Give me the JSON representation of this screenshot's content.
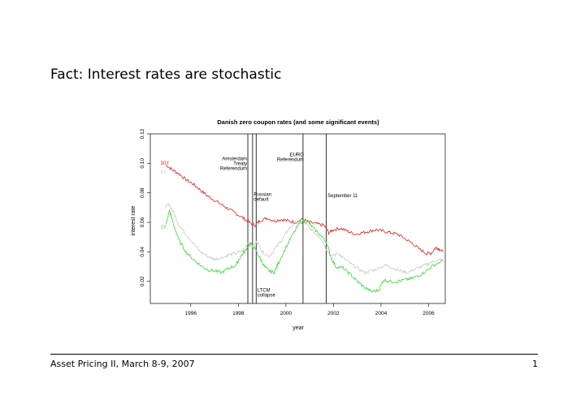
{
  "slide": {
    "title": "Fact: Interest rates are stochastic",
    "footer_left": "Asset Pricing II, March 8-9, 2007",
    "footer_right": "1"
  },
  "chart_data": {
    "type": "line",
    "title": "Danish zero coupon rates (and some significant events)",
    "xlabel": "year",
    "ylabel": "interest rate",
    "xlim": [
      1994.3,
      2006.7
    ],
    "ylim": [
      0.005,
      0.12
    ],
    "xticks": [
      1996,
      1998,
      2000,
      2002,
      2004,
      2006
    ],
    "yticks": [
      0.02,
      0.04,
      0.06,
      0.08,
      0.1,
      0.12
    ],
    "xtick_labels": [
      "1996",
      "1998",
      "2000",
      "2002",
      "2004",
      "2006"
    ],
    "ytick_labels": [
      "0.02",
      "0.04",
      "0.06",
      "0.08",
      "0.10",
      "0.12"
    ],
    "grid": false,
    "legend": "none",
    "series": [
      {
        "name": "30Y",
        "color": "#e0231d",
        "points": [
          [
            1994.95,
            0.099
          ],
          [
            1995.2,
            0.096
          ],
          [
            1995.5,
            0.093
          ],
          [
            1995.8,
            0.089
          ],
          [
            1996.1,
            0.086
          ],
          [
            1996.4,
            0.082
          ],
          [
            1996.7,
            0.078
          ],
          [
            1997.0,
            0.075
          ],
          [
            1997.3,
            0.072
          ],
          [
            1997.6,
            0.069
          ],
          [
            1997.9,
            0.066
          ],
          [
            1998.2,
            0.063
          ],
          [
            1998.45,
            0.06
          ],
          [
            1998.7,
            0.058
          ],
          [
            1998.9,
            0.061
          ],
          [
            1999.2,
            0.063
          ],
          [
            1999.5,
            0.061
          ],
          [
            1999.8,
            0.062
          ],
          [
            2000.1,
            0.061
          ],
          [
            2000.4,
            0.06
          ],
          [
            2000.7,
            0.062
          ],
          [
            2001.0,
            0.06
          ],
          [
            2001.3,
            0.059
          ],
          [
            2001.6,
            0.058
          ],
          [
            2001.8,
            0.053
          ],
          [
            2002.0,
            0.055
          ],
          [
            2002.3,
            0.056
          ],
          [
            2002.6,
            0.054
          ],
          [
            2002.9,
            0.052
          ],
          [
            2003.2,
            0.053
          ],
          [
            2003.5,
            0.054
          ],
          [
            2003.8,
            0.055
          ],
          [
            2004.1,
            0.054
          ],
          [
            2004.4,
            0.053
          ],
          [
            2004.7,
            0.052
          ],
          [
            2005.0,
            0.049
          ],
          [
            2005.3,
            0.046
          ],
          [
            2005.6,
            0.042
          ],
          [
            2005.9,
            0.039
          ],
          [
            2006.1,
            0.039
          ],
          [
            2006.3,
            0.043
          ],
          [
            2006.45,
            0.042
          ],
          [
            2006.6,
            0.04
          ]
        ]
      },
      {
        "name": "5Y",
        "color": "#c8c8c8",
        "points": [
          [
            1994.95,
            0.071
          ],
          [
            1995.1,
            0.072
          ],
          [
            1995.3,
            0.066
          ],
          [
            1995.5,
            0.058
          ],
          [
            1995.8,
            0.052
          ],
          [
            1996.1,
            0.046
          ],
          [
            1996.4,
            0.04
          ],
          [
            1996.7,
            0.037
          ],
          [
            1997.0,
            0.035
          ],
          [
            1997.3,
            0.036
          ],
          [
            1997.6,
            0.038
          ],
          [
            1997.9,
            0.039
          ],
          [
            1998.2,
            0.041
          ],
          [
            1998.4,
            0.046
          ],
          [
            1998.6,
            0.044
          ],
          [
            1998.8,
            0.047
          ],
          [
            1999.0,
            0.04
          ],
          [
            1999.3,
            0.037
          ],
          [
            1999.6,
            0.043
          ],
          [
            1999.9,
            0.05
          ],
          [
            2000.1,
            0.055
          ],
          [
            2000.4,
            0.06
          ],
          [
            2000.7,
            0.061
          ],
          [
            2000.9,
            0.058
          ],
          [
            2001.2,
            0.053
          ],
          [
            2001.5,
            0.049
          ],
          [
            2001.7,
            0.042
          ],
          [
            2001.9,
            0.037
          ],
          [
            2002.2,
            0.039
          ],
          [
            2002.4,
            0.036
          ],
          [
            2002.7,
            0.032
          ],
          [
            2003.0,
            0.029
          ],
          [
            2003.3,
            0.026
          ],
          [
            2003.6,
            0.027
          ],
          [
            2003.9,
            0.029
          ],
          [
            2004.2,
            0.031
          ],
          [
            2004.5,
            0.029
          ],
          [
            2004.8,
            0.027
          ],
          [
            2005.1,
            0.026
          ],
          [
            2005.4,
            0.028
          ],
          [
            2005.7,
            0.03
          ],
          [
            2006.0,
            0.032
          ],
          [
            2006.3,
            0.034
          ],
          [
            2006.6,
            0.035
          ]
        ]
      },
      {
        "name": "1Y",
        "color": "#35d935",
        "points": [
          [
            1994.95,
            0.058
          ],
          [
            1995.1,
            0.068
          ],
          [
            1995.25,
            0.06
          ],
          [
            1995.5,
            0.048
          ],
          [
            1995.8,
            0.04
          ],
          [
            1996.1,
            0.035
          ],
          [
            1996.4,
            0.031
          ],
          [
            1996.7,
            0.028
          ],
          [
            1997.0,
            0.027
          ],
          [
            1997.3,
            0.026
          ],
          [
            1997.6,
            0.029
          ],
          [
            1997.9,
            0.031
          ],
          [
            1998.1,
            0.037
          ],
          [
            1998.3,
            0.041
          ],
          [
            1998.5,
            0.046
          ],
          [
            1998.7,
            0.042
          ],
          [
            1998.9,
            0.036
          ],
          [
            1999.1,
            0.03
          ],
          [
            1999.3,
            0.027
          ],
          [
            1999.5,
            0.026
          ],
          [
            1999.7,
            0.033
          ],
          [
            2000.0,
            0.043
          ],
          [
            2000.3,
            0.052
          ],
          [
            2000.6,
            0.06
          ],
          [
            2000.9,
            0.061
          ],
          [
            2001.1,
            0.057
          ],
          [
            2001.4,
            0.052
          ],
          [
            2001.7,
            0.047
          ],
          [
            2001.9,
            0.036
          ],
          [
            2002.1,
            0.03
          ],
          [
            2002.4,
            0.029
          ],
          [
            2002.7,
            0.025
          ],
          [
            2003.0,
            0.02
          ],
          [
            2003.3,
            0.016
          ],
          [
            2003.6,
            0.013
          ],
          [
            2003.9,
            0.014
          ],
          [
            2004.1,
            0.021
          ],
          [
            2004.4,
            0.02
          ],
          [
            2004.7,
            0.02
          ],
          [
            2005.0,
            0.021
          ],
          [
            2005.3,
            0.022
          ],
          [
            2005.6,
            0.024
          ],
          [
            2005.9,
            0.027
          ],
          [
            2006.2,
            0.031
          ],
          [
            2006.6,
            0.034
          ]
        ]
      }
    ],
    "series_labels": [
      {
        "text": "30Y",
        "x": 1995.0,
        "y": 0.099,
        "color": "#e0231d"
      },
      {
        "text": "5Y",
        "x": 1995.0,
        "y": 0.093,
        "color": "#c8c8c8"
      },
      {
        "text": "1Y",
        "x": 1995.0,
        "y": 0.056,
        "color": "#35d935"
      }
    ],
    "events": [
      {
        "x": 1998.4,
        "lines": [
          "Amsterdam",
          "Treaty",
          "Referendum"
        ],
        "y": 0.102
      },
      {
        "x": 1998.6,
        "lines": [
          "Russian",
          "default"
        ],
        "y": 0.078
      },
      {
        "x": 1998.75,
        "lines": [
          "LTCM",
          "collapse"
        ],
        "y": 0.013
      },
      {
        "x": 2000.72,
        "lines": [
          "EURO",
          "Referendum"
        ],
        "y": 0.105
      },
      {
        "x": 2001.7,
        "lines": [
          "September 11"
        ],
        "y": 0.077
      }
    ]
  }
}
